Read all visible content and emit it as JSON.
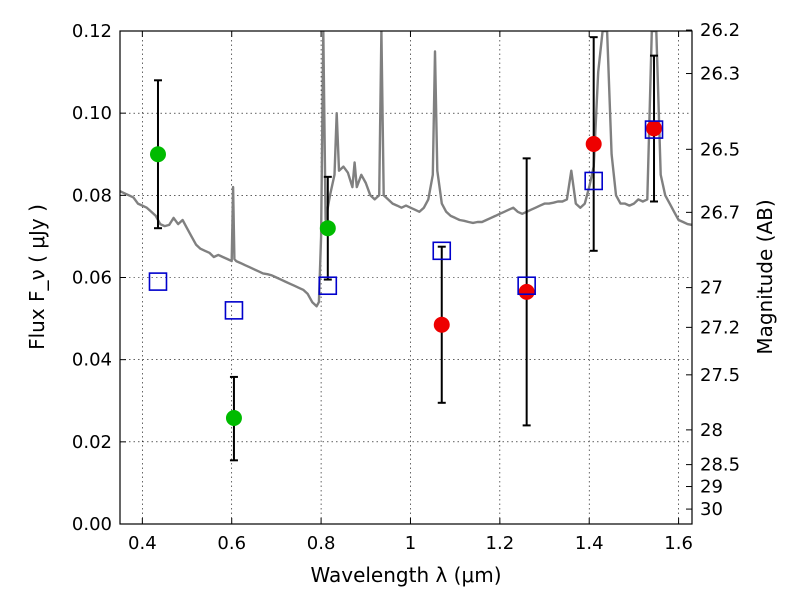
{
  "chart_data": {
    "type": "scatter",
    "xlabel": "Wavelength  λ (μm)",
    "ylabel": "Flux  F_ν  ( μJy )",
    "ylabel_right": "Magnitude (AB)",
    "xlim": [
      0.35,
      1.63
    ],
    "ylim": [
      0.0,
      0.12
    ],
    "grid": true,
    "x_ticks": [
      0.4,
      0.6,
      0.8,
      1.0,
      1.2,
      1.4,
      1.6
    ],
    "x_tick_labels": [
      "0.4",
      "0.6",
      "0.8",
      "1",
      "1.2",
      "1.4",
      "1.6"
    ],
    "y_ticks": [
      0.0,
      0.02,
      0.04,
      0.06,
      0.08,
      0.1,
      0.12
    ],
    "y_tick_labels": [
      "0.00",
      "0.02",
      "0.04",
      "0.06",
      "0.08",
      "0.10",
      "0.12"
    ],
    "right_ticks": [
      {
        "label": "26.2",
        "mag": 26.2
      },
      {
        "label": "26.3",
        "mag": 26.3
      },
      {
        "label": "26.5",
        "mag": 26.5
      },
      {
        "label": "26.7",
        "mag": 26.7
      },
      {
        "label": "27",
        "mag": 27.0
      },
      {
        "label": "27.2",
        "mag": 27.2
      },
      {
        "label": "27.5",
        "mag": 27.5
      },
      {
        "label": "28",
        "mag": 28.0
      },
      {
        "label": "28.5",
        "mag": 28.5
      },
      {
        "label": "29",
        "mag": 29.0
      },
      {
        "label": "30",
        "mag": 30.0
      }
    ],
    "series": [
      {
        "name": "model-spectrum",
        "kind": "line",
        "color": "#808080",
        "points": [
          [
            0.35,
            0.081
          ],
          [
            0.36,
            0.0805
          ],
          [
            0.37,
            0.08
          ],
          [
            0.38,
            0.0795
          ],
          [
            0.39,
            0.078
          ],
          [
            0.4,
            0.0775
          ],
          [
            0.41,
            0.077
          ],
          [
            0.42,
            0.076
          ],
          [
            0.43,
            0.075
          ],
          [
            0.44,
            0.073
          ],
          [
            0.45,
            0.0725
          ],
          [
            0.46,
            0.0728
          ],
          [
            0.47,
            0.0745
          ],
          [
            0.48,
            0.073
          ],
          [
            0.49,
            0.074
          ],
          [
            0.5,
            0.072
          ],
          [
            0.51,
            0.07
          ],
          [
            0.52,
            0.068
          ],
          [
            0.53,
            0.067
          ],
          [
            0.54,
            0.0665
          ],
          [
            0.55,
            0.066
          ],
          [
            0.56,
            0.065
          ],
          [
            0.57,
            0.0655
          ],
          [
            0.58,
            0.065
          ],
          [
            0.59,
            0.0645
          ],
          [
            0.6,
            0.064
          ],
          [
            0.603,
            0.082
          ],
          [
            0.606,
            0.0645
          ],
          [
            0.61,
            0.064
          ],
          [
            0.62,
            0.0635
          ],
          [
            0.63,
            0.063
          ],
          [
            0.64,
            0.0625
          ],
          [
            0.65,
            0.062
          ],
          [
            0.66,
            0.0615
          ],
          [
            0.67,
            0.061
          ],
          [
            0.68,
            0.0608
          ],
          [
            0.69,
            0.0605
          ],
          [
            0.7,
            0.06
          ],
          [
            0.71,
            0.0595
          ],
          [
            0.72,
            0.059
          ],
          [
            0.73,
            0.0585
          ],
          [
            0.74,
            0.058
          ],
          [
            0.75,
            0.0575
          ],
          [
            0.76,
            0.057
          ],
          [
            0.77,
            0.056
          ],
          [
            0.78,
            0.054
          ],
          [
            0.79,
            0.053
          ],
          [
            0.795,
            0.054
          ],
          [
            0.8,
            0.07
          ],
          [
            0.805,
            0.12
          ],
          [
            0.81,
            0.074
          ],
          [
            0.82,
            0.08
          ],
          [
            0.83,
            0.085
          ],
          [
            0.835,
            0.1
          ],
          [
            0.84,
            0.086
          ],
          [
            0.85,
            0.087
          ],
          [
            0.86,
            0.0855
          ],
          [
            0.87,
            0.082
          ],
          [
            0.875,
            0.088
          ],
          [
            0.88,
            0.082
          ],
          [
            0.89,
            0.085
          ],
          [
            0.9,
            0.083
          ],
          [
            0.91,
            0.08
          ],
          [
            0.92,
            0.079
          ],
          [
            0.93,
            0.08
          ],
          [
            0.935,
            0.12
          ],
          [
            0.94,
            0.08
          ],
          [
            0.95,
            0.079
          ],
          [
            0.96,
            0.078
          ],
          [
            0.97,
            0.0775
          ],
          [
            0.98,
            0.077
          ],
          [
            0.99,
            0.0775
          ],
          [
            1.0,
            0.077
          ],
          [
            1.01,
            0.0765
          ],
          [
            1.02,
            0.076
          ],
          [
            1.03,
            0.077
          ],
          [
            1.04,
            0.079
          ],
          [
            1.05,
            0.085
          ],
          [
            1.055,
            0.115
          ],
          [
            1.06,
            0.086
          ],
          [
            1.07,
            0.078
          ],
          [
            1.08,
            0.076
          ],
          [
            1.09,
            0.075
          ],
          [
            1.1,
            0.0745
          ],
          [
            1.11,
            0.074
          ],
          [
            1.12,
            0.0738
          ],
          [
            1.13,
            0.0735
          ],
          [
            1.14,
            0.0733
          ],
          [
            1.15,
            0.0735
          ],
          [
            1.16,
            0.0735
          ],
          [
            1.17,
            0.074
          ],
          [
            1.18,
            0.0745
          ],
          [
            1.19,
            0.075
          ],
          [
            1.2,
            0.0755
          ],
          [
            1.21,
            0.076
          ],
          [
            1.22,
            0.0765
          ],
          [
            1.23,
            0.077
          ],
          [
            1.24,
            0.076
          ],
          [
            1.25,
            0.0755
          ],
          [
            1.26,
            0.076
          ],
          [
            1.27,
            0.0765
          ],
          [
            1.28,
            0.077
          ],
          [
            1.29,
            0.0775
          ],
          [
            1.3,
            0.078
          ],
          [
            1.31,
            0.078
          ],
          [
            1.32,
            0.0782
          ],
          [
            1.33,
            0.0785
          ],
          [
            1.34,
            0.0785
          ],
          [
            1.35,
            0.079
          ],
          [
            1.36,
            0.086
          ],
          [
            1.37,
            0.078
          ],
          [
            1.38,
            0.077
          ],
          [
            1.39,
            0.078
          ],
          [
            1.4,
            0.082
          ],
          [
            1.41,
            0.087
          ],
          [
            1.42,
            0.11
          ],
          [
            1.43,
            0.12
          ],
          [
            1.44,
            0.12
          ],
          [
            1.45,
            0.09
          ],
          [
            1.46,
            0.08
          ],
          [
            1.47,
            0.078
          ],
          [
            1.48,
            0.078
          ],
          [
            1.49,
            0.0775
          ],
          [
            1.5,
            0.078
          ],
          [
            1.51,
            0.079
          ],
          [
            1.52,
            0.0785
          ],
          [
            1.53,
            0.079
          ],
          [
            1.54,
            0.12
          ],
          [
            1.55,
            0.12
          ],
          [
            1.56,
            0.085
          ],
          [
            1.57,
            0.08
          ],
          [
            1.58,
            0.078
          ],
          [
            1.59,
            0.076
          ],
          [
            1.6,
            0.074
          ],
          [
            1.61,
            0.0735
          ],
          [
            1.62,
            0.073
          ],
          [
            1.63,
            0.0728
          ]
        ]
      },
      {
        "name": "observed-optical",
        "kind": "errorbar",
        "marker": "circle",
        "color": "#00bb00",
        "points": [
          {
            "x": 0.435,
            "y": 0.09,
            "ylo": 0.072,
            "yhi": 0.108
          },
          {
            "x": 0.605,
            "y": 0.0258,
            "ylo": 0.0155,
            "yhi": 0.0358
          },
          {
            "x": 0.815,
            "y": 0.072,
            "ylo": 0.0595,
            "yhi": 0.0845
          }
        ]
      },
      {
        "name": "observed-nir",
        "kind": "errorbar",
        "marker": "circle",
        "color": "#ee0000",
        "points": [
          {
            "x": 1.07,
            "y": 0.0485,
            "ylo": 0.0295,
            "yhi": 0.0675
          },
          {
            "x": 1.26,
            "y": 0.0565,
            "ylo": 0.024,
            "yhi": 0.089
          },
          {
            "x": 1.41,
            "y": 0.0925,
            "ylo": 0.0665,
            "yhi": 0.1185
          },
          {
            "x": 1.545,
            "y": 0.0963,
            "ylo": 0.0785,
            "yhi": 0.114
          }
        ]
      },
      {
        "name": "model-photometry",
        "kind": "markers",
        "marker": "square-open",
        "color": "#0000cc",
        "points": [
          {
            "x": 0.435,
            "y": 0.059
          },
          {
            "x": 0.605,
            "y": 0.052
          },
          {
            "x": 0.815,
            "y": 0.058
          },
          {
            "x": 1.07,
            "y": 0.0665
          },
          {
            "x": 1.26,
            "y": 0.058
          },
          {
            "x": 1.41,
            "y": 0.0835
          },
          {
            "x": 1.545,
            "y": 0.096
          }
        ]
      }
    ]
  }
}
